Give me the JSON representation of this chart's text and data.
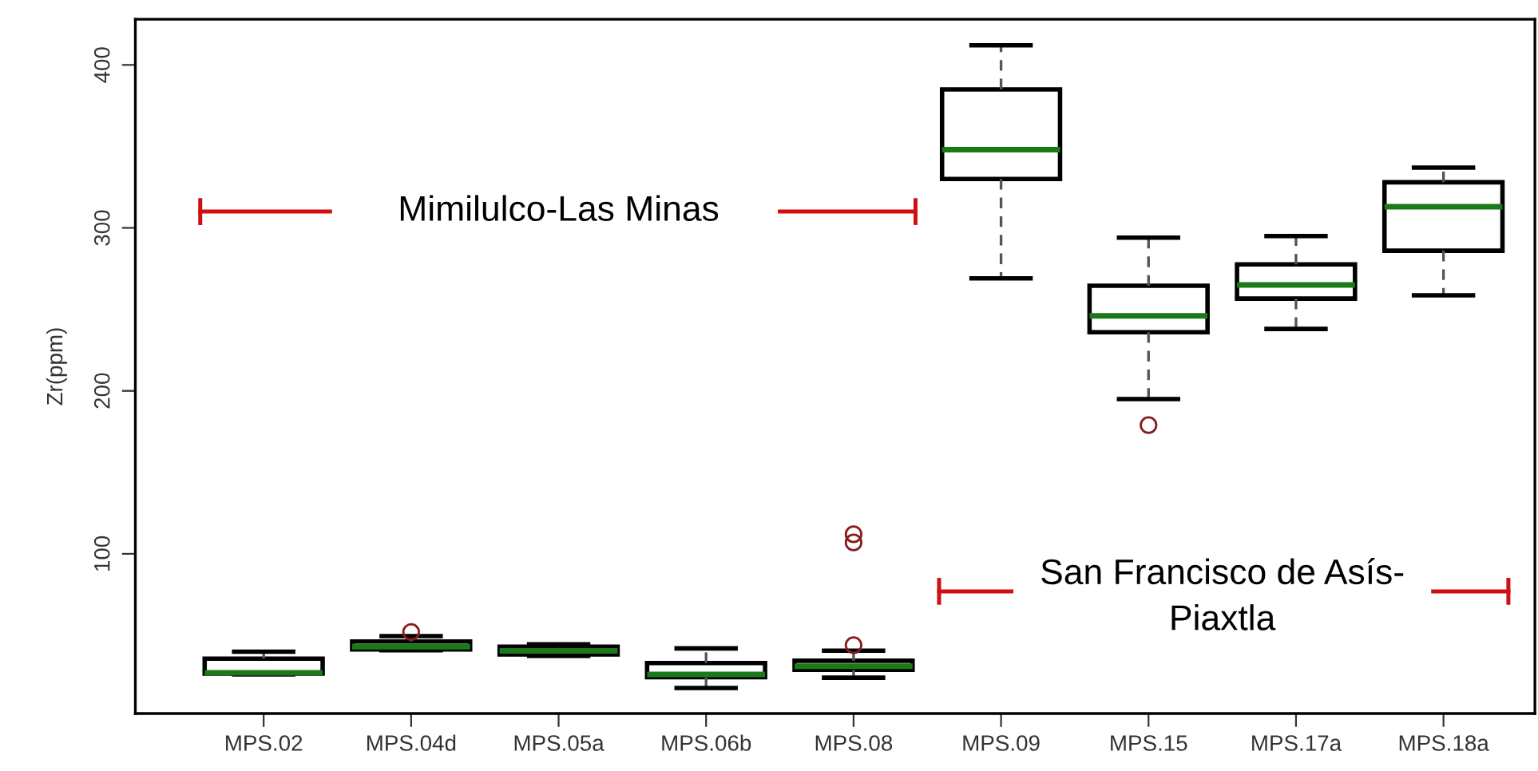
{
  "chart_data": {
    "type": "box",
    "ylabel": "Zr(ppm)",
    "categories": [
      "MPS.02",
      "MPS.04d",
      "MPS.05a",
      "MPS.06b",
      "MPS.08",
      "MPS.09",
      "MPS.15",
      "MPS.17a",
      "MPS.18a"
    ],
    "series": [
      {
        "boxes": [
          {
            "low": 26,
            "q1": 26.5,
            "median": 27,
            "q3": 35.7,
            "high": 40
          },
          {
            "low": 40.8,
            "q1": 41.3,
            "median": 43,
            "q3": 46.2,
            "high": 49.5,
            "outliers": [
              52
            ]
          },
          {
            "low": 37.4,
            "q1": 38.3,
            "median": 40.5,
            "q3": 43,
            "high": 44.5
          },
          {
            "low": 17.7,
            "q1": 24.3,
            "median": 26,
            "q3": 33,
            "high": 42
          },
          {
            "low": 24,
            "q1": 28.8,
            "median": 31,
            "q3": 34.4,
            "high": 40.6,
            "outliers": [
              44,
              107,
              112
            ]
          },
          {
            "low": 269,
            "q1": 330,
            "median": 348,
            "q3": 385,
            "high": 412
          },
          {
            "low": 195,
            "q1": 236,
            "median": 246,
            "q3": 264.5,
            "high": 294,
            "outliers": [
              179
            ]
          },
          {
            "low": 238,
            "q1": 256.6,
            "median": 265,
            "q3": 277.6,
            "high": 295
          },
          {
            "low": 258.6,
            "q1": 286,
            "median": 313,
            "q3": 328,
            "high": 337
          }
        ]
      }
    ],
    "ylim": [
      2,
      428
    ],
    "yticks": [
      100,
      200,
      300,
      400
    ],
    "grid": false,
    "annotations": [
      "Mimilulco-Las Minas",
      "San Francisco de Asís-Piaxtla"
    ]
  }
}
